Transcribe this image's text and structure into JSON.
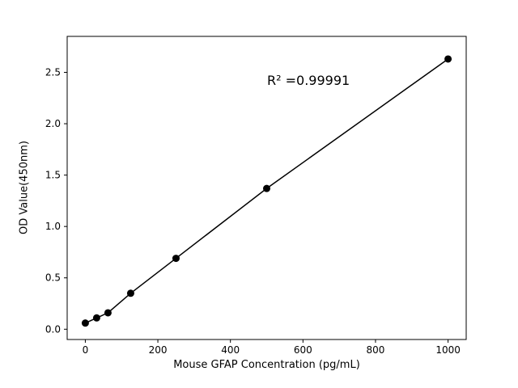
{
  "chart_data": {
    "type": "scatter",
    "title": "",
    "xlabel": "Mouse GFAP Concentration (pg/mL)",
    "ylabel": "OD Value(450nm)",
    "annotation": "R² =0.99991",
    "x": [
      0,
      31.25,
      62.5,
      125,
      250,
      500,
      1000
    ],
    "y": [
      0.06,
      0.11,
      0.16,
      0.35,
      0.69,
      1.37,
      2.63
    ],
    "xlim": [
      -50,
      1050
    ],
    "ylim": [
      -0.1,
      2.85
    ],
    "xticks": [
      0,
      200,
      400,
      600,
      800,
      1000
    ],
    "xtick_labels": [
      "0",
      "200",
      "400",
      "600",
      "800",
      "1000"
    ],
    "yticks": [
      0.0,
      0.5,
      1.0,
      1.5,
      2.0,
      2.5
    ],
    "ytick_labels": [
      "0.0",
      "0.5",
      "1.0",
      "1.5",
      "2.0",
      "2.5"
    ],
    "grid": false,
    "legend": "none",
    "line_color": "#000000",
    "marker_color": "#000000",
    "background_color": "#ffffff"
  }
}
